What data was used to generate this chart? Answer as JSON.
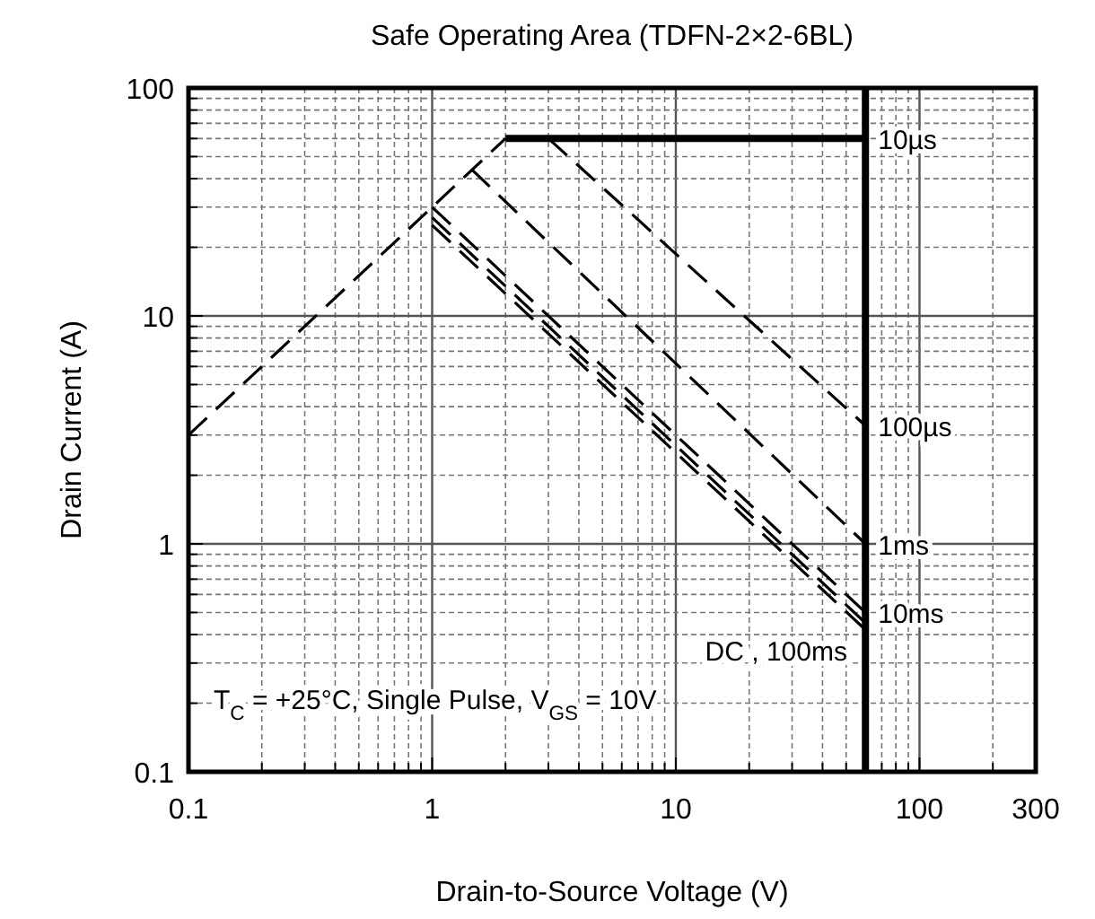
{
  "chart_data": {
    "type": "line",
    "title": "Safe Operating Area (TDFN-2×2-6BL)",
    "xlabel": "Drain-to-Source Voltage (V)",
    "ylabel": "Drain Current (A)",
    "log": "xy",
    "grid": true,
    "xlim": [
      0.1,
      300
    ],
    "ylim": [
      0.1,
      100
    ],
    "xticks": [
      0.1,
      {
        "value": 0.2,
        "label": null
      },
      {
        "value": 0.3,
        "label": null
      },
      {
        "value": 0.4,
        "label": null
      },
      {
        "value": 0.5,
        "label": null
      },
      {
        "value": 0.6,
        "label": null
      },
      {
        "value": 0.7,
        "label": null
      },
      {
        "value": 0.8,
        "label": null
      },
      {
        "value": 0.9,
        "label": null
      },
      1,
      {
        "value": 2,
        "label": null
      },
      {
        "value": 3,
        "label": null
      },
      {
        "value": 4,
        "label": null
      },
      {
        "value": 5,
        "label": null
      },
      {
        "value": 6,
        "label": null
      },
      {
        "value": 7,
        "label": null
      },
      {
        "value": 8,
        "label": null
      },
      {
        "value": 9,
        "label": null
      },
      10,
      {
        "value": 20,
        "label": null
      },
      {
        "value": 30,
        "label": null
      },
      {
        "value": 40,
        "label": null
      },
      {
        "value": 50,
        "label": null
      },
      {
        "value": 60,
        "label": null
      },
      {
        "value": 70,
        "label": null
      },
      {
        "value": 80,
        "label": null
      },
      {
        "value": 90,
        "label": null
      },
      100,
      {
        "value": 200,
        "label": null
      },
      300
    ],
    "yticks": [
      0.1,
      {
        "value": 0.2,
        "label": null
      },
      {
        "value": 0.3,
        "label": null
      },
      {
        "value": 0.4,
        "label": null
      },
      {
        "value": 0.5,
        "label": null
      },
      {
        "value": 0.6,
        "label": null
      },
      {
        "value": 0.7,
        "label": null
      },
      {
        "value": 0.8,
        "label": null
      },
      {
        "value": 0.9,
        "label": null
      },
      1,
      {
        "value": 2,
        "label": null
      },
      {
        "value": 3,
        "label": null
      },
      {
        "value": 4,
        "label": null
      },
      {
        "value": 5,
        "label": null
      },
      {
        "value": 6,
        "label": null
      },
      {
        "value": 7,
        "label": null
      },
      {
        "value": 8,
        "label": null
      },
      {
        "value": 9,
        "label": null
      },
      10,
      {
        "value": 20,
        "label": null
      },
      {
        "value": 30,
        "label": null
      },
      {
        "value": 40,
        "label": null
      },
      {
        "value": 50,
        "label": null
      },
      {
        "value": 60,
        "label": null
      },
      {
        "value": 70,
        "label": null
      },
      {
        "value": 80,
        "label": null
      },
      {
        "value": 90,
        "label": null
      },
      100
    ],
    "series": [
      {
        "color": "#000000",
        "line_style": "dashed",
        "x": [
          0.1,
          2
        ],
        "values": [
          3,
          60
        ]
      },
      {
        "name": "10µs",
        "color": "#000000",
        "line_style": "solid",
        "x": [
          2,
          60
        ],
        "values": [
          60,
          60
        ]
      },
      {
        "name": "100µs",
        "color": "#000000",
        "line_style": "dashed",
        "x": [
          3,
          60
        ],
        "values": [
          60,
          3.3
        ]
      },
      {
        "name": "1ms",
        "color": "#000000",
        "line_style": "dashed",
        "x": [
          1.45,
          60
        ],
        "values": [
          44,
          1
        ]
      },
      {
        "name": "10ms",
        "color": "#000000",
        "line_style": "dashed",
        "x": [
          1,
          60
        ],
        "values": [
          30,
          0.5
        ]
      },
      {
        "color": "#000000",
        "line_style": "dashed",
        "x": [
          1,
          60
        ],
        "values": [
          27,
          0.45
        ]
      },
      {
        "color": "#000000",
        "line_style": "dashed",
        "x": [
          1,
          60
        ],
        "values": [
          25,
          0.42
        ]
      }
    ],
    "ref_lines": [
      {
        "axis": "x",
        "value": 60,
        "color": "#000000",
        "line_style": "solid"
      }
    ],
    "annotations": [
      "DC , 100ms",
      "T$_{C}$ = +25°C,  Single Pulse,  V$_{GS}$ = 10V"
    ]
  }
}
